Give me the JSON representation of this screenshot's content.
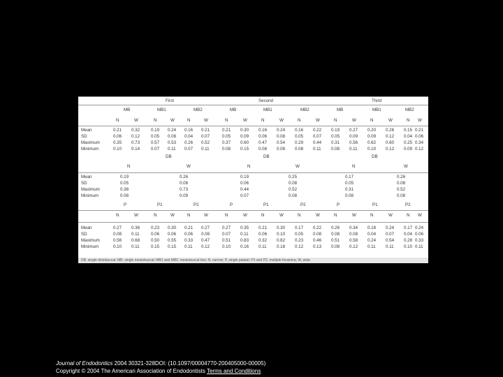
{
  "table": {
    "section1": {
      "groups": [
        "First",
        "Second",
        "Third"
      ],
      "canals": [
        "MB",
        "MB1",
        "MB2",
        "MB",
        "MB1",
        "MB2",
        "MB",
        "MB1",
        "MB2"
      ],
      "nw": [
        "N",
        "W",
        "N",
        "W",
        "N",
        "W",
        "N",
        "W",
        "N",
        "W",
        "N",
        "W",
        "N",
        "W",
        "N",
        "W",
        "N",
        "W"
      ],
      "rows": [
        {
          "label": "Mean",
          "values": [
            "0.21",
            "0.32",
            "0.19",
            "0.24",
            "0.16",
            "0.21",
            "0.21",
            "0.30",
            "0.16",
            "0.24",
            "0.16",
            "0.22",
            "0.19",
            "0.27",
            "0.20",
            "0.26",
            "0.15",
            "0.21"
          ]
        },
        {
          "label": "SD",
          "values": [
            "0.06",
            "0.12",
            "0.05",
            "0.08",
            "0.04",
            "0.07",
            "0.05",
            "0.09",
            "0.06",
            "0.08",
            "0.05",
            "0.07",
            "0.05",
            "0.09",
            "0.09",
            "0.12",
            "0.04",
            "0.06"
          ]
        },
        {
          "label": "Maximum",
          "values": [
            "0.35",
            "0.73",
            "0.57",
            "0.53",
            "0.26",
            "0.52",
            "0.37",
            "0.60",
            "0.47",
            "0.54",
            "0.29",
            "0.44",
            "0.31",
            "0.56",
            "0.62",
            "0.60",
            "0.25",
            "0.34"
          ]
        },
        {
          "label": "Minimum",
          "values": [
            "0.10",
            "0.14",
            "0.07",
            "0.11",
            "0.07",
            "0.11",
            "0.08",
            "0.15",
            "0.08",
            "0.08",
            "0.08",
            "0.11",
            "0.08",
            "0.11",
            "0.10",
            "0.12",
            "0.09",
            "0.12"
          ]
        }
      ]
    },
    "section2": {
      "db": [
        "DB",
        "DB",
        "DB"
      ],
      "nw": [
        "N",
        "W",
        "N",
        "W",
        "N",
        "W"
      ],
      "rows": [
        {
          "label": "Mean",
          "values": [
            "0.19",
            "0.26",
            "0.19",
            "0.25",
            "0.17",
            "0.26"
          ]
        },
        {
          "label": "SD",
          "values": [
            "0.05",
            "0.08",
            "0.06",
            "0.08",
            "0.05",
            "0.08"
          ]
        },
        {
          "label": "Maximum",
          "values": [
            "0.38",
            "0.73",
            "0.44",
            "0.52",
            "0.31",
            "0.52"
          ]
        },
        {
          "label": "Minimum",
          "values": [
            "0.08",
            "0.09",
            "0.07",
            "0.08",
            "0.08",
            "0.08"
          ]
        }
      ]
    },
    "section3": {
      "canals": [
        "P",
        "P1",
        "P2",
        "P",
        "P1",
        "P2",
        "P",
        "P1",
        "P2"
      ],
      "nw": [
        "N",
        "W",
        "N",
        "W",
        "N",
        "W",
        "N",
        "W",
        "N",
        "W",
        "N",
        "W",
        "N",
        "W",
        "N",
        "W",
        "N",
        "W"
      ],
      "rows": [
        {
          "label": "Mean",
          "values": [
            "0.27",
            "0.36",
            "0.23",
            "0.30",
            "0.21",
            "0.27",
            "0.27",
            "0.35",
            "0.21",
            "0.30",
            "0.17",
            "0.22",
            "0.26",
            "0.34",
            "0.18",
            "0.24",
            "0.17",
            "0.24"
          ]
        },
        {
          "label": "SD",
          "values": [
            "0.08",
            "0.11",
            "0.06",
            "0.06",
            "0.06",
            "0.08",
            "0.07",
            "0.11",
            "0.06",
            "0.10",
            "0.05",
            "0.08",
            "0.08",
            "0.08",
            "0.04",
            "0.07",
            "0.04",
            "0.06"
          ]
        },
        {
          "label": "Maximum",
          "values": [
            "0.56",
            "0.68",
            "0.50",
            "0.55",
            "0.33",
            "0.47",
            "0.51",
            "0.83",
            "0.32",
            "0.62",
            "0.23",
            "0.46",
            "0.51",
            "0.58",
            "0.24",
            "0.54",
            "0.28",
            "0.33"
          ]
        },
        {
          "label": "Minimum",
          "values": [
            "0.10",
            "0.11",
            "0.15",
            "0.15",
            "0.11",
            "0.12",
            "0.10",
            "0.16",
            "0.11",
            "0.18",
            "0.12",
            "0.13",
            "0.08",
            "0.12",
            "0.11",
            "0.11",
            "0.10",
            "0.11"
          ]
        }
      ]
    },
    "footnote": "DB, single distobuccal; MB, single mesiobuccal; MB1 and MB2, mesiobuccal two; N, narrow; P, single palatal; P1 and P2, multiple foramina; W, wide."
  },
  "citation": {
    "journal": "Journal of Endodontics",
    "reference": " 2004 30321-328DOI: (10.1097/00004770-200405000-00005)",
    "copyright": "Copyright © 2004 The American Association of Endodontists",
    "link_label": "Terms and Conditions"
  }
}
